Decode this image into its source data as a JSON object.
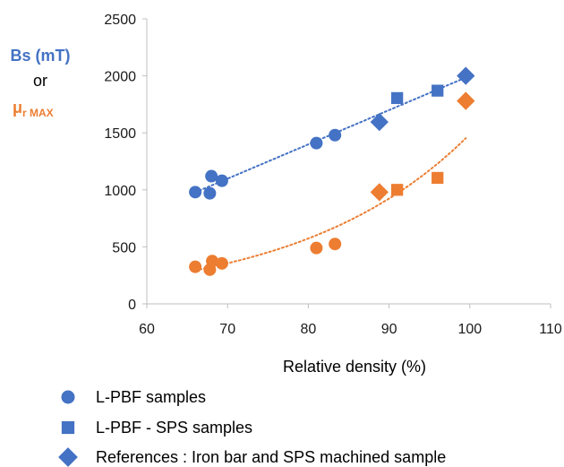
{
  "chart_data": {
    "type": "scatter",
    "xlabel": "Relative density (%)",
    "ylabel": {
      "line1": "Bs (mT)",
      "line2": "or",
      "mu": "μ",
      "sub_r": "r",
      "sub_max": " MAX"
    },
    "xlim": [
      60,
      110
    ],
    "ylim": [
      0,
      2500
    ],
    "x_ticks": [
      "60",
      "70",
      "80",
      "90",
      "100",
      "110"
    ],
    "y_ticks": [
      "0",
      "500",
      "1000",
      "1500",
      "2000",
      "2500"
    ],
    "grid": false,
    "colors": {
      "bs": "#4472C4",
      "mu": "#ED7D31"
    },
    "series": [
      {
        "quantity": "Bs",
        "marker": "circle",
        "color": "#4472C4",
        "points": [
          [
            66,
            980
          ],
          [
            67.8,
            970
          ],
          [
            68,
            1120
          ],
          [
            69.3,
            1080
          ],
          [
            81,
            1410
          ],
          [
            83.3,
            1480
          ]
        ]
      },
      {
        "quantity": "Bs",
        "marker": "square",
        "color": "#4472C4",
        "points": [
          [
            91,
            1805
          ],
          [
            96,
            1870
          ]
        ]
      },
      {
        "quantity": "Bs",
        "marker": "diamond",
        "color": "#4472C4",
        "points": [
          [
            88.8,
            1595
          ],
          [
            99.5,
            2000
          ]
        ]
      },
      {
        "quantity": "mu_r_max",
        "marker": "circle",
        "color": "#ED7D31",
        "points": [
          [
            66,
            325
          ],
          [
            67.8,
            300
          ],
          [
            68.1,
            375
          ],
          [
            69.3,
            355
          ],
          [
            81,
            490
          ],
          [
            83.3,
            525
          ]
        ]
      },
      {
        "quantity": "mu_r_max",
        "marker": "square",
        "color": "#ED7D31",
        "points": [
          [
            91,
            1000
          ],
          [
            96,
            1105
          ]
        ]
      },
      {
        "quantity": "mu_r_max",
        "marker": "diamond",
        "color": "#ED7D31",
        "points": [
          [
            88.8,
            980
          ],
          [
            99.5,
            1780
          ]
        ]
      }
    ],
    "trendlines": [
      {
        "quantity": "Bs",
        "kind": "linear",
        "style": "dotted",
        "color": "#4472C4",
        "x_range": [
          66,
          99.5
        ]
      },
      {
        "quantity": "mu_r_max",
        "kind": "exponential",
        "style": "dotted",
        "color": "#ED7D31",
        "x_range": [
          66,
          99.5
        ]
      }
    ],
    "legend": {
      "placement": "bottom-left",
      "entries": [
        {
          "marker": "circle",
          "color": "#4472C4",
          "label": "L-PBF samples"
        },
        {
          "marker": "square",
          "color": "#4472C4",
          "label": "L-PBF - SPS samples"
        },
        {
          "marker": "diamond",
          "color": "#4472C4",
          "label": "References : Iron bar and SPS machined sample"
        }
      ]
    }
  }
}
